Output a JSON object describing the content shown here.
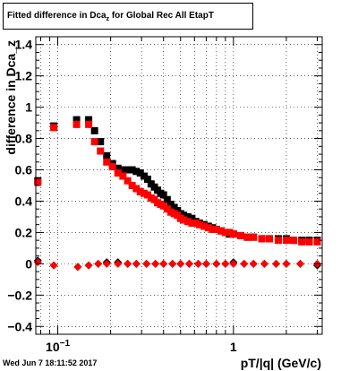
{
  "title": {
    "prefix": "Fitted difference in Dca",
    "subscript": "z",
    "suffix": " for Global Rec All EtapT"
  },
  "footer": {
    "timestamp": "Wed Jun  7 18:11:52 2017"
  },
  "colors": {
    "black_series": "#000000",
    "red_series": "#ff0000",
    "frame": "#000000",
    "grid": "#000000"
  },
  "chart_data": {
    "type": "scatter",
    "title": "Fitted difference in Dca_z for Global Rec All EtapT",
    "xlabel": "pT/|q| (GeV/c)",
    "ylabel": "difference in Dca_z",
    "xscale": "log",
    "xlim": [
      0.075,
      3.2
    ],
    "ylim": [
      -0.45,
      1.45
    ],
    "grid": true,
    "legend": "none",
    "x_ticks": [
      {
        "value": 0.1,
        "label": "10",
        "exp": "−1"
      },
      {
        "value": 1,
        "label": "1"
      }
    ],
    "y_ticks": [
      -0.4,
      -0.2,
      0,
      0.2,
      0.4,
      0.6,
      0.8,
      1,
      1.2,
      1.4
    ],
    "series": [
      {
        "name": "",
        "color": "#000000",
        "marker": "square",
        "x": [
          0.077,
          0.095,
          0.128,
          0.15,
          0.162,
          0.175,
          0.19,
          0.205,
          0.22,
          0.235,
          0.25,
          0.265,
          0.28,
          0.295,
          0.31,
          0.325,
          0.34,
          0.355,
          0.37,
          0.385,
          0.4,
          0.42,
          0.44,
          0.46,
          0.48,
          0.5,
          0.52,
          0.55,
          0.58,
          0.61,
          0.64,
          0.68,
          0.72,
          0.76,
          0.8,
          0.85,
          0.9,
          0.95,
          1.0,
          1.1,
          1.2,
          1.3,
          1.45,
          1.6,
          1.8,
          2.0,
          2.2,
          2.45,
          2.7,
          3.0
        ],
        "y": [
          0.53,
          0.88,
          0.92,
          0.92,
          0.85,
          0.78,
          0.69,
          0.64,
          0.61,
          0.6,
          0.6,
          0.6,
          0.59,
          0.58,
          0.56,
          0.54,
          0.51,
          0.49,
          0.47,
          0.45,
          0.44,
          0.41,
          0.38,
          0.36,
          0.34,
          0.32,
          0.31,
          0.3,
          0.29,
          0.27,
          0.26,
          0.25,
          0.24,
          0.23,
          0.22,
          0.21,
          0.2,
          0.19,
          0.19,
          0.18,
          0.17,
          0.17,
          0.16,
          0.16,
          0.16,
          0.16,
          0.15,
          0.15,
          0.15,
          0.15
        ]
      },
      {
        "name": "",
        "color": "#ff0000",
        "marker": "square",
        "x": [
          0.077,
          0.095,
          0.128,
          0.15,
          0.162,
          0.175,
          0.19,
          0.205,
          0.22,
          0.235,
          0.25,
          0.265,
          0.28,
          0.295,
          0.31,
          0.325,
          0.34,
          0.355,
          0.37,
          0.385,
          0.4,
          0.42,
          0.44,
          0.46,
          0.48,
          0.5,
          0.52,
          0.55,
          0.58,
          0.61,
          0.64,
          0.68,
          0.72,
          0.76,
          0.8,
          0.85,
          0.9,
          0.95,
          1.0,
          1.1,
          1.2,
          1.3,
          1.45,
          1.6,
          1.8,
          2.0,
          2.2,
          2.45,
          2.7,
          3.0
        ],
        "y": [
          0.52,
          0.87,
          0.89,
          0.89,
          0.78,
          0.72,
          0.65,
          0.62,
          0.58,
          0.56,
          0.53,
          0.5,
          0.48,
          0.46,
          0.45,
          0.44,
          0.42,
          0.41,
          0.39,
          0.38,
          0.37,
          0.35,
          0.33,
          0.32,
          0.31,
          0.29,
          0.28,
          0.27,
          0.26,
          0.26,
          0.25,
          0.24,
          0.23,
          0.22,
          0.22,
          0.21,
          0.2,
          0.2,
          0.19,
          0.18,
          0.17,
          0.17,
          0.16,
          0.16,
          0.15,
          0.15,
          0.15,
          0.14,
          0.14,
          0.14
        ]
      },
      {
        "name": "",
        "color": "#000000",
        "marker": "diamond",
        "x": [
          0.077,
          0.095,
          0.13,
          0.15,
          0.17,
          0.19,
          0.22,
          0.25,
          0.28,
          0.32,
          0.36,
          0.4,
          0.45,
          0.5,
          0.56,
          0.63,
          0.7,
          0.8,
          0.9,
          1.0,
          1.15,
          1.3,
          1.5,
          1.75,
          2.0,
          2.4,
          3.0
        ],
        "y": [
          0.02,
          -0.01,
          -0.02,
          -0.01,
          0.0,
          0.01,
          0.01,
          0.0,
          0.0,
          0.0,
          0.0,
          0.0,
          0.0,
          0.0,
          0.0,
          0.0,
          0.0,
          0.0,
          0.0,
          0.01,
          0.0,
          0.0,
          0.0,
          0.0,
          0.0,
          0.0,
          -0.01
        ]
      },
      {
        "name": "",
        "color": "#ff0000",
        "marker": "diamond",
        "x": [
          0.077,
          0.095,
          0.13,
          0.15,
          0.17,
          0.19,
          0.22,
          0.25,
          0.28,
          0.32,
          0.36,
          0.4,
          0.45,
          0.5,
          0.56,
          0.63,
          0.7,
          0.8,
          0.9,
          1.0,
          1.15,
          1.3,
          1.5,
          1.75,
          2.0,
          2.4,
          3.0
        ],
        "y": [
          0.01,
          -0.01,
          -0.02,
          -0.01,
          0.0,
          0.0,
          0.0,
          0.0,
          0.0,
          0.0,
          0.0,
          0.0,
          0.0,
          0.0,
          0.0,
          0.0,
          0.0,
          0.0,
          0.0,
          0.0,
          0.0,
          0.0,
          0.0,
          0.0,
          0.0,
          0.0,
          0.0
        ]
      }
    ]
  }
}
